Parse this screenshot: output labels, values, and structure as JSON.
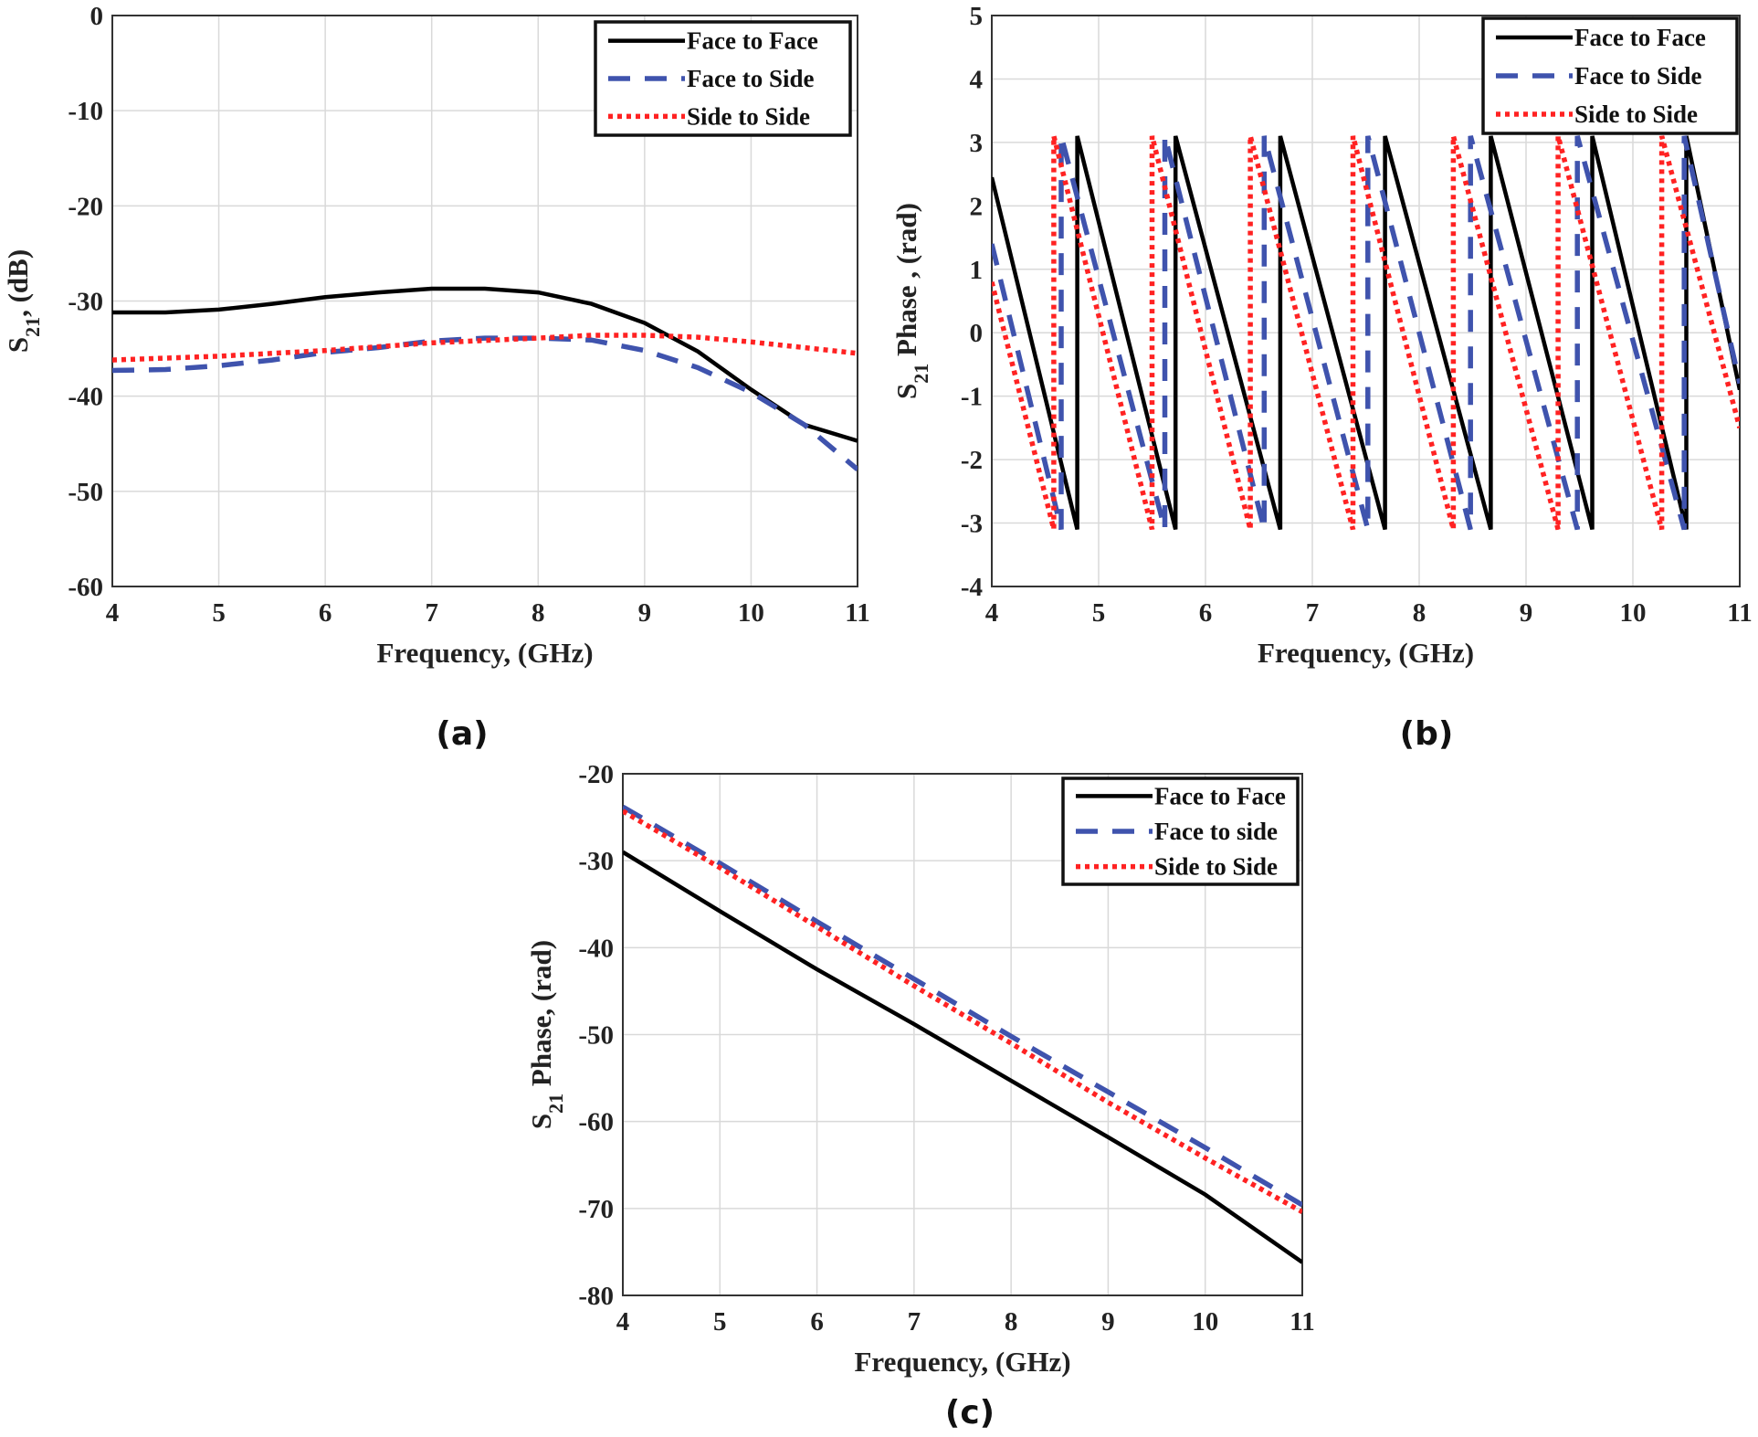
{
  "colors": {
    "face_to_face": "#000000",
    "face_to_side": "#3f53ad",
    "side_to_side": "#ff2222",
    "grid": "#d9d9d9"
  },
  "chart_data": [
    {
      "type": "line",
      "panel_label": "(a)",
      "xlabel": "Frequency, (GHz)",
      "ylabel": {
        "main": "S",
        "sub": "21",
        "rest": ", (dB)"
      },
      "xlim": [
        4,
        11
      ],
      "ylim": [
        -60,
        0
      ],
      "xticks": [
        4,
        5,
        6,
        7,
        8,
        9,
        10,
        11
      ],
      "yticks": [
        0,
        -10,
        -20,
        -30,
        -40,
        -50,
        -60
      ],
      "grid": true,
      "legend_position": "top-right",
      "series": [
        {
          "name": "Face to Face",
          "style": "solid",
          "points": [
            [
              4,
              -31.2
            ],
            [
              4.5,
              -31.2
            ],
            [
              5,
              -30.9
            ],
            [
              5.5,
              -30.3
            ],
            [
              6,
              -29.6
            ],
            [
              6.5,
              -29.1
            ],
            [
              7,
              -28.7
            ],
            [
              7.5,
              -28.7
            ],
            [
              8,
              -29.1
            ],
            [
              8.5,
              -30.3
            ],
            [
              9,
              -32.3
            ],
            [
              9.5,
              -35.3
            ],
            [
              10,
              -39.3
            ],
            [
              10.5,
              -43.0
            ],
            [
              11,
              -44.7
            ]
          ]
        },
        {
          "name": "Face to Side",
          "style": "dashed",
          "points": [
            [
              4,
              -37.3
            ],
            [
              4.5,
              -37.2
            ],
            [
              5,
              -36.8
            ],
            [
              5.5,
              -36.2
            ],
            [
              6,
              -35.4
            ],
            [
              6.5,
              -34.9
            ],
            [
              7,
              -34.2
            ],
            [
              7.5,
              -33.9
            ],
            [
              8,
              -33.9
            ],
            [
              8.5,
              -34.1
            ],
            [
              9,
              -35.2
            ],
            [
              9.5,
              -37.0
            ],
            [
              10,
              -39.6
            ],
            [
              10.5,
              -43.0
            ],
            [
              11,
              -47.7
            ]
          ]
        },
        {
          "name": "Side to Side",
          "style": "dotted",
          "points": [
            [
              4,
              -36.2
            ],
            [
              5,
              -35.8
            ],
            [
              6,
              -35.2
            ],
            [
              7,
              -34.4
            ],
            [
              8,
              -33.9
            ],
            [
              8.5,
              -33.6
            ],
            [
              9,
              -33.6
            ],
            [
              9.5,
              -33.8
            ],
            [
              10,
              -34.3
            ],
            [
              10.5,
              -34.9
            ],
            [
              11,
              -35.5
            ]
          ]
        }
      ]
    },
    {
      "type": "line",
      "panel_label": "(b)",
      "xlabel": "Frequency, (GHz)",
      "ylabel": {
        "main": "S",
        "sub": "21",
        "rest": " Phase , (rad)"
      },
      "xlim": [
        4,
        11
      ],
      "ylim": [
        -4,
        5
      ],
      "xticks": [
        4,
        5,
        6,
        7,
        8,
        9,
        10,
        11
      ],
      "yticks": [
        5,
        4,
        3,
        2,
        1,
        0,
        -1,
        -2,
        -3,
        -4
      ],
      "grid": true,
      "legend_position": "top-right",
      "series": [
        {
          "name": "Face to Face",
          "style": "solid",
          "points": [
            [
              4,
              2.45
            ],
            [
              4.8,
              -3.1
            ],
            [
              4.8,
              3.1
            ],
            [
              5.72,
              -3.1
            ],
            [
              5.72,
              3.1
            ],
            [
              6.7,
              -3.1
            ],
            [
              6.7,
              3.1
            ],
            [
              7.68,
              -3.1
            ],
            [
              7.68,
              3.1
            ],
            [
              8.67,
              -3.1
            ],
            [
              8.67,
              3.1
            ],
            [
              9.62,
              -3.1
            ],
            [
              9.62,
              3.1
            ],
            [
              10.5,
              -3.1
            ],
            [
              10.5,
              3.1
            ],
            [
              11,
              -0.9
            ]
          ]
        },
        {
          "name": "Face to Side",
          "style": "dashed",
          "points": [
            [
              4,
              1.4
            ],
            [
              4.65,
              -3.1
            ],
            [
              4.65,
              3.1
            ],
            [
              5.62,
              -3.1
            ],
            [
              5.62,
              3.1
            ],
            [
              6.55,
              -3.1
            ],
            [
              6.55,
              3.1
            ],
            [
              7.52,
              -3.1
            ],
            [
              7.52,
              3.1
            ],
            [
              8.48,
              -3.1
            ],
            [
              8.48,
              3.1
            ],
            [
              9.48,
              -3.1
            ],
            [
              9.48,
              3.1
            ],
            [
              10.48,
              -3.1
            ],
            [
              10.48,
              3.1
            ],
            [
              11,
              -0.8
            ]
          ]
        },
        {
          "name": "Side to Side",
          "style": "dotted",
          "points": [
            [
              4,
              0.8
            ],
            [
              4.58,
              -3.1
            ],
            [
              4.58,
              3.1
            ],
            [
              5.5,
              -3.1
            ],
            [
              5.5,
              3.1
            ],
            [
              6.42,
              -3.1
            ],
            [
              6.42,
              3.1
            ],
            [
              7.38,
              -3.1
            ],
            [
              7.38,
              3.1
            ],
            [
              8.32,
              -3.1
            ],
            [
              8.32,
              3.1
            ],
            [
              9.3,
              -3.1
            ],
            [
              9.3,
              3.1
            ],
            [
              10.27,
              -3.1
            ],
            [
              10.27,
              3.1
            ],
            [
              11,
              -1.5
            ]
          ]
        }
      ]
    },
    {
      "type": "line",
      "panel_label": "(c)",
      "xlabel": "Frequency, (GHz)",
      "ylabel": {
        "main": "S",
        "sub": "21",
        "rest": " Phase, (rad)"
      },
      "xlim": [
        4,
        11
      ],
      "ylim": [
        -80,
        -20
      ],
      "xticks": [
        4,
        5,
        6,
        7,
        8,
        9,
        10,
        11
      ],
      "yticks": [
        -20,
        -30,
        -40,
        -50,
        -60,
        -70,
        -80
      ],
      "grid": true,
      "legend_position": "top-right",
      "series": [
        {
          "name": "Face to Face",
          "style": "solid",
          "points": [
            [
              4,
              -29.0
            ],
            [
              5,
              -35.8
            ],
            [
              6,
              -42.5
            ],
            [
              7,
              -48.8
            ],
            [
              8,
              -55.3
            ],
            [
              9,
              -61.8
            ],
            [
              10,
              -68.4
            ],
            [
              11,
              -76.2
            ]
          ]
        },
        {
          "name": "Face to side",
          "style": "dashed",
          "points": [
            [
              4,
              -23.8
            ],
            [
              5,
              -30.3
            ],
            [
              6,
              -37.0
            ],
            [
              7,
              -43.6
            ],
            [
              8,
              -50.2
            ],
            [
              9,
              -56.6
            ],
            [
              10,
              -63.0
            ],
            [
              11,
              -69.6
            ]
          ]
        },
        {
          "name": "Side to Side",
          "style": "dotted",
          "points": [
            [
              4,
              -24.3
            ],
            [
              5,
              -30.8
            ],
            [
              6,
              -37.6
            ],
            [
              7,
              -44.4
            ],
            [
              8,
              -51.0
            ],
            [
              9,
              -57.8
            ],
            [
              10,
              -64.2
            ],
            [
              11,
              -70.4
            ]
          ]
        }
      ]
    }
  ]
}
